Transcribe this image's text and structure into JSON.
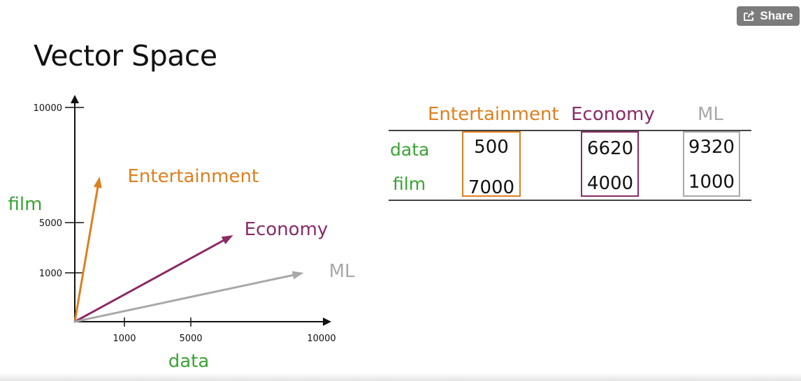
{
  "page": {
    "title": "Vector Space"
  },
  "share": {
    "label": "Share",
    "icon": "share-icon"
  },
  "colors": {
    "entertainment": "#dd7f1f",
    "economy": "#8b2a66",
    "ml": "#a8a8a8",
    "word_label": "#3aa335",
    "axis": "#111111"
  },
  "chart_data": {
    "type": "line",
    "x_axis": {
      "label": "data",
      "ticks": [
        1000,
        5000,
        10000
      ],
      "tick_labels": [
        "1000",
        "5000",
        "10000"
      ]
    },
    "y_axis": {
      "label": "film",
      "ticks": [
        1000,
        5000,
        10000
      ],
      "tick_labels": [
        "1000",
        "5000",
        "10000"
      ]
    },
    "scale": "non-linear (schematic)",
    "series": [
      {
        "name": "Entertainment",
        "x": 500,
        "y": 7000,
        "color": "#dd7f1f"
      },
      {
        "name": "Economy",
        "x": 6620,
        "y": 4000,
        "color": "#8b2a66"
      },
      {
        "name": "ML",
        "x": 9320,
        "y": 1000,
        "color": "#a8a8a8"
      }
    ]
  },
  "table": {
    "columns": [
      "Entertainment",
      "Economy",
      "ML"
    ],
    "rows": [
      {
        "label": "data",
        "values": [
          "500",
          "6620",
          "9320"
        ]
      },
      {
        "label": "film",
        "values": [
          "7000",
          "4000",
          "1000"
        ]
      }
    ]
  }
}
